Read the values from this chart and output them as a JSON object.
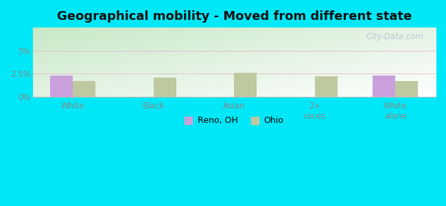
{
  "title": "Geographical mobility - Moved from different state",
  "categories": [
    "White",
    "Black",
    "Asian",
    "2+\nraces",
    "White\nalone"
  ],
  "reno_values": [
    2.3,
    0.0,
    0.0,
    0.0,
    2.3
  ],
  "ohio_values": [
    1.7,
    2.1,
    2.6,
    2.2,
    1.7
  ],
  "reno_color": "#c9a0dc",
  "ohio_color": "#bec9a0",
  "ylim_max": 7.5,
  "yticks": [
    0,
    2.5,
    5.0
  ],
  "ytick_labels": [
    "0%",
    "2.5%",
    "5%"
  ],
  "bg_color_top_left": "#c8e8c8",
  "bg_color_bottom_right": "#f0fff0",
  "outer_color": "#00e8f8",
  "title_fontsize": 13,
  "legend_labels": [
    "Reno, OH",
    "Ohio"
  ],
  "bar_width": 0.28,
  "gridline_color": "#e8b8c8",
  "gridline_alpha": 0.9,
  "tick_label_color": "#888888",
  "watermark": "City-Data.com"
}
